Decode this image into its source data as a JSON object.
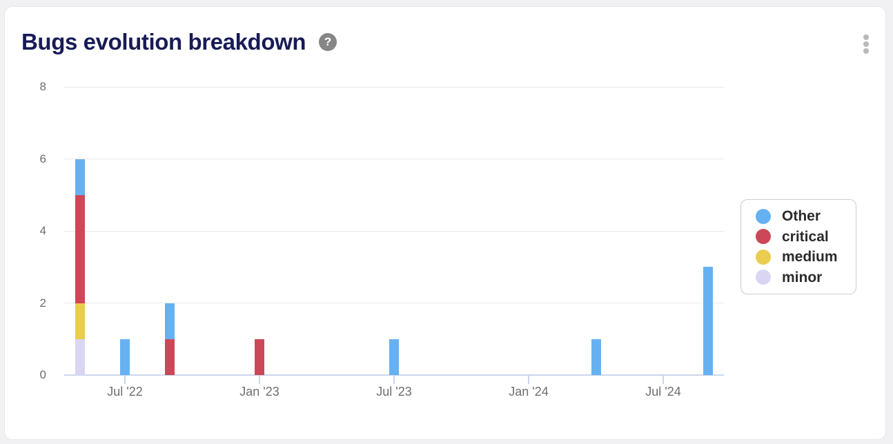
{
  "header": {
    "title": "Bugs evolution breakdown",
    "help_glyph": "?"
  },
  "colors": {
    "background": "#f1f1f4",
    "card": "#ffffff",
    "title": "#181b56",
    "gridline": "#e9e9e9",
    "axis_line": "#cbd5ec",
    "axis_label": "#6b6b6b"
  },
  "chart_data": {
    "type": "bar",
    "stacked": true,
    "title": "Bugs evolution breakdown",
    "xlabel": "",
    "ylabel": "",
    "ylim": [
      0,
      8
    ],
    "y_ticks": [
      0,
      2,
      4,
      6,
      8
    ],
    "grid": true,
    "legend_position": "right",
    "stack_order_bottom_to_top": [
      "minor",
      "medium",
      "critical",
      "Other"
    ],
    "series_colors": {
      "Other": "#66b1f1",
      "critical": "#cc4757",
      "medium": "#eacd4f",
      "minor": "#d9d6f4"
    },
    "x_axis": {
      "type": "time",
      "month_offset_anchor": "May '22",
      "tick_labels": [
        "Jul '22",
        "Jan '23",
        "Jul '23",
        "Jan '24",
        "Jul '24"
      ],
      "tick_month_offsets": [
        2,
        8,
        14,
        20,
        26
      ]
    },
    "points": [
      {
        "date": "May '22",
        "month_offset": 0,
        "values": {
          "Other": 1,
          "critical": 3,
          "medium": 1,
          "minor": 1
        }
      },
      {
        "date": "Jul '22",
        "month_offset": 2,
        "values": {
          "Other": 1
        }
      },
      {
        "date": "Sep '22",
        "month_offset": 4,
        "values": {
          "Other": 1,
          "critical": 1
        }
      },
      {
        "date": "Jan '23",
        "month_offset": 8,
        "values": {
          "critical": 1
        }
      },
      {
        "date": "Jul '23",
        "month_offset": 14,
        "values": {
          "Other": 1
        }
      },
      {
        "date": "Apr '24",
        "month_offset": 23,
        "values": {
          "Other": 1
        }
      },
      {
        "date": "Sep '24",
        "month_offset": 28,
        "values": {
          "Other": 3
        }
      }
    ],
    "legend": [
      {
        "label": "Other",
        "color": "#66b1f1"
      },
      {
        "label": "critical",
        "color": "#cc4757"
      },
      {
        "label": "medium",
        "color": "#eacd4f"
      },
      {
        "label": "minor",
        "color": "#d9d6f4"
      }
    ]
  }
}
